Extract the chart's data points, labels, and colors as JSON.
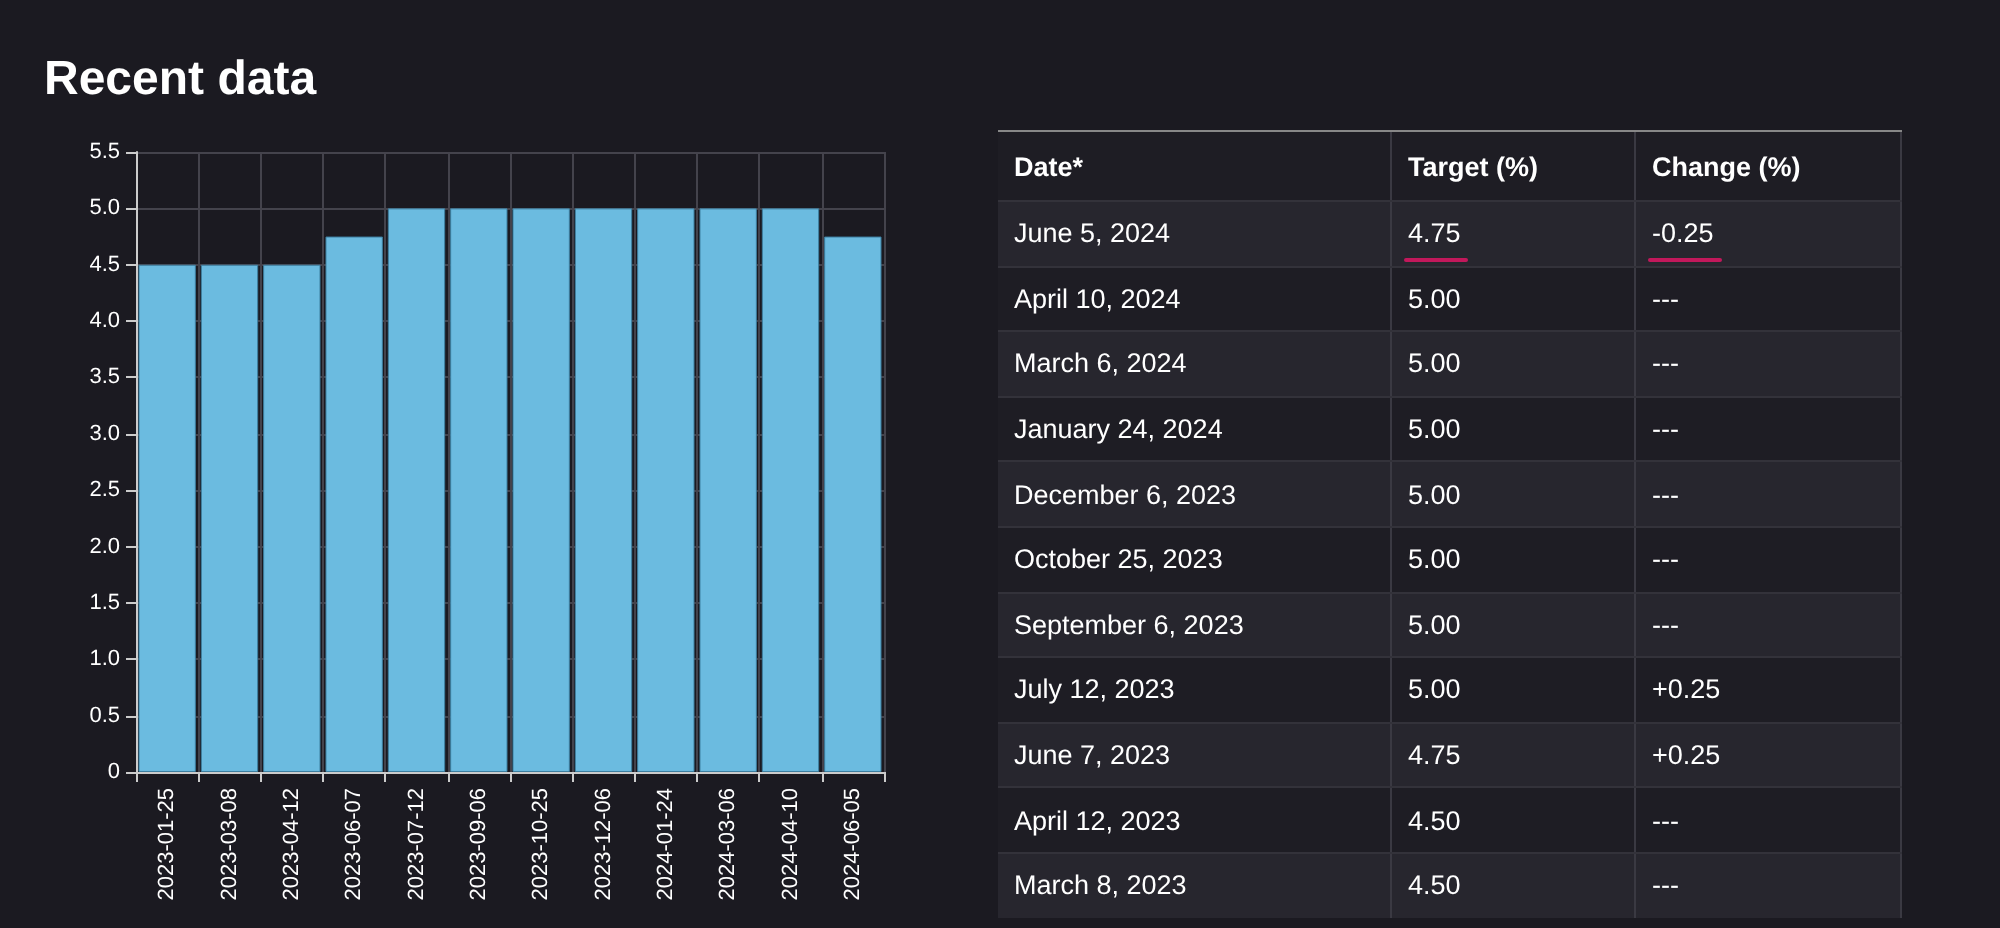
{
  "chart_data": [
    {
      "type": "bar",
      "title": "Recent data",
      "categories": [
        "2023-01-25",
        "2023-03-08",
        "2023-04-12",
        "2023-06-07",
        "2023-07-12",
        "2023-09-06",
        "2023-10-25",
        "2023-12-06",
        "2024-01-24",
        "2024-03-06",
        "2024-04-10",
        "2024-06-05"
      ],
      "values": [
        4.5,
        4.5,
        4.5,
        4.75,
        5.0,
        5.0,
        5.0,
        5.0,
        5.0,
        5.0,
        5.0,
        4.75
      ],
      "color": "#6bbbe0",
      "ylim": [
        0,
        5.5
      ],
      "yticks": [
        0,
        0.5,
        {
          "value": 1,
          "label": "1.0"
        },
        1.5,
        {
          "value": 2,
          "label": "2.0"
        },
        2.5,
        {
          "value": 3,
          "label": "3.0"
        },
        3.5,
        {
          "value": 4,
          "label": "4.0"
        },
        4.5,
        {
          "value": 5,
          "label": "5.0"
        },
        5.5
      ],
      "grid": true
    },
    {
      "type": "other",
      "annotations": [
        "Date*",
        "Target (%)",
        "Change (%)",
        "June 5, 2024",
        "4.75",
        "-0.25",
        "April 10, 2024",
        "5.00",
        "---",
        "March 6, 2024",
        "5.00",
        "---",
        "January 24, 2024",
        "5.00",
        "---",
        "December 6, 2023",
        "5.00",
        "---",
        "October 25, 2023",
        "5.00",
        "---",
        "September 6, 2023",
        "5.00",
        "---",
        "July 12, 2023",
        "5.00",
        "+0.25",
        "June 7, 2023",
        "4.75",
        "+0.25",
        "April 12, 2023",
        "4.50",
        "---",
        "March 8, 2023",
        "4.50",
        "---"
      ]
    }
  ]
}
